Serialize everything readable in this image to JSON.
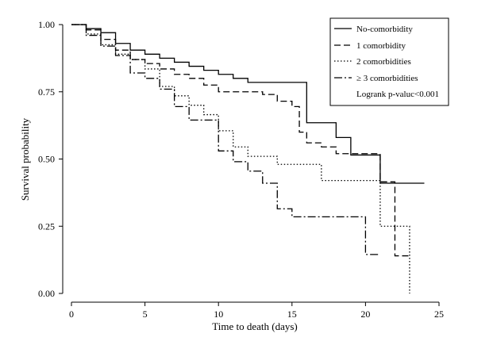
{
  "chart_data": {
    "type": "line",
    "subtype": "kaplan-meier step",
    "title": "",
    "xlabel": "Time to death (days)",
    "ylabel": "Survival probability",
    "xlim": [
      0,
      25
    ],
    "ylim": [
      0,
      1
    ],
    "xticks": [
      0,
      5,
      10,
      15,
      20,
      25
    ],
    "yticks": [
      0.0,
      0.25,
      0.5,
      0.75,
      1.0
    ],
    "ytick_labels": [
      "0.00",
      "0.25",
      "0.50",
      "0.75",
      "1.00"
    ],
    "legend_position": "top-right",
    "annotation": "Logrank p-valuc<0.001",
    "series": [
      {
        "name": "No-comorbidity",
        "dash": "solid",
        "points": [
          [
            0,
            1.0
          ],
          [
            1,
            0.985
          ],
          [
            2,
            0.97
          ],
          [
            3,
            0.93
          ],
          [
            4,
            0.905
          ],
          [
            5,
            0.89
          ],
          [
            6,
            0.875
          ],
          [
            7,
            0.86
          ],
          [
            8,
            0.845
          ],
          [
            9,
            0.83
          ],
          [
            10,
            0.815
          ],
          [
            11,
            0.8
          ],
          [
            12,
            0.785
          ],
          [
            16,
            0.635
          ],
          [
            18,
            0.58
          ],
          [
            19,
            0.515
          ],
          [
            21,
            0.41
          ],
          [
            24,
            0.41
          ]
        ]
      },
      {
        "name": "1 comorbidity",
        "dash": "dashed",
        "points": [
          [
            0,
            1.0
          ],
          [
            1,
            0.98
          ],
          [
            2,
            0.945
          ],
          [
            3,
            0.905
          ],
          [
            4,
            0.87
          ],
          [
            5,
            0.855
          ],
          [
            6,
            0.835
          ],
          [
            7,
            0.815
          ],
          [
            8,
            0.8
          ],
          [
            9,
            0.775
          ],
          [
            10,
            0.75
          ],
          [
            13,
            0.74
          ],
          [
            14,
            0.715
          ],
          [
            15,
            0.695
          ],
          [
            15.5,
            0.6
          ],
          [
            16,
            0.56
          ],
          [
            17,
            0.545
          ],
          [
            18,
            0.52
          ],
          [
            21,
            0.415
          ],
          [
            22,
            0.14
          ],
          [
            23,
            0.14
          ]
        ]
      },
      {
        "name": "2 comorbidities",
        "dash": "dotted",
        "points": [
          [
            0,
            1.0
          ],
          [
            1,
            0.965
          ],
          [
            2,
            0.925
          ],
          [
            3,
            0.89
          ],
          [
            4,
            0.87
          ],
          [
            5,
            0.835
          ],
          [
            6,
            0.77
          ],
          [
            7,
            0.735
          ],
          [
            8,
            0.7
          ],
          [
            9,
            0.665
          ],
          [
            10,
            0.605
          ],
          [
            11,
            0.545
          ],
          [
            12,
            0.51
          ],
          [
            14,
            0.48
          ],
          [
            17,
            0.42
          ],
          [
            21,
            0.25
          ],
          [
            23,
            0.0
          ]
        ]
      },
      {
        "name": "≥ 3 comorbidities",
        "dash": "dashdot",
        "points": [
          [
            0,
            1.0
          ],
          [
            1,
            0.96
          ],
          [
            2,
            0.92
          ],
          [
            3,
            0.885
          ],
          [
            4,
            0.82
          ],
          [
            5,
            0.8
          ],
          [
            6,
            0.76
          ],
          [
            7,
            0.695
          ],
          [
            8,
            0.645
          ],
          [
            10,
            0.53
          ],
          [
            11,
            0.49
          ],
          [
            12,
            0.455
          ],
          [
            13,
            0.41
          ],
          [
            14,
            0.315
          ],
          [
            15,
            0.285
          ],
          [
            20,
            0.145
          ],
          [
            21,
            0.145
          ]
        ]
      }
    ]
  }
}
